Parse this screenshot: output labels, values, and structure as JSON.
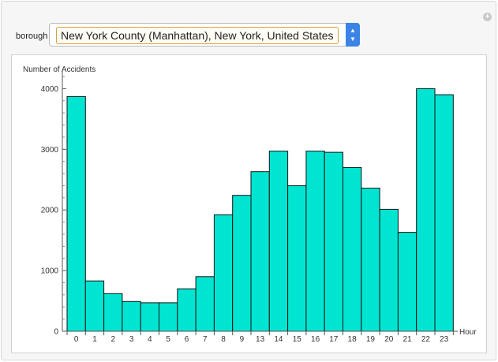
{
  "controls": {
    "borough_label": "borough",
    "borough_selected": "New York County (Manhattan), New York, United States"
  },
  "icons": {
    "add": "plus-circle-icon",
    "dropdown": "up-down-chevron-icon"
  },
  "chart_data": {
    "type": "bar",
    "ylabel": "Number of Accidents",
    "xlabel": "Hour",
    "categories": [
      "0",
      "1",
      "2",
      "3",
      "4",
      "5",
      "6",
      "7",
      "8",
      "9",
      "13",
      "14",
      "15",
      "16",
      "17",
      "18",
      "19",
      "20",
      "21",
      "22",
      "23"
    ],
    "values": [
      3870,
      830,
      620,
      490,
      470,
      470,
      700,
      900,
      1920,
      2240,
      2630,
      2970,
      2400,
      2970,
      2950,
      2700,
      2360,
      2010,
      1630,
      4000,
      3900
    ],
    "ylim": [
      0,
      4200
    ],
    "yticks": [
      0,
      1000,
      2000,
      3000,
      4000
    ],
    "bar_color": "#00e5d1",
    "grid": false
  }
}
